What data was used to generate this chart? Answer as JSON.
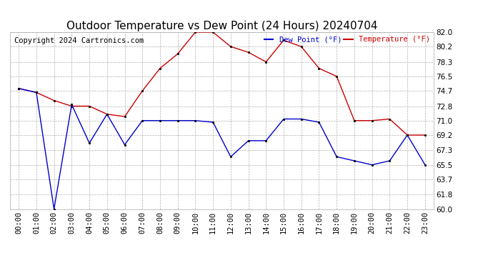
{
  "title": "Outdoor Temperature vs Dew Point (24 Hours) 20240704",
  "copyright": "Copyright 2024 Cartronics.com",
  "legend_dew": "Dew Point (°F)",
  "legend_temp": "Temperature (°F)",
  "x_labels": [
    "00:00",
    "01:00",
    "02:00",
    "03:00",
    "04:00",
    "05:00",
    "06:00",
    "07:00",
    "08:00",
    "09:00",
    "10:00",
    "11:00",
    "12:00",
    "13:00",
    "14:00",
    "15:00",
    "16:00",
    "17:00",
    "18:00",
    "19:00",
    "20:00",
    "21:00",
    "22:00",
    "23:00"
  ],
  "temperature": [
    75.0,
    74.5,
    73.5,
    72.8,
    72.8,
    71.8,
    71.5,
    74.7,
    77.5,
    79.3,
    82.0,
    82.0,
    80.2,
    79.5,
    78.3,
    81.0,
    80.2,
    77.5,
    76.5,
    71.0,
    71.0,
    71.2,
    69.2,
    69.2
  ],
  "dew_point": [
    75.0,
    74.5,
    60.0,
    73.0,
    68.2,
    71.8,
    68.0,
    71.0,
    71.0,
    71.0,
    71.0,
    70.8,
    66.5,
    68.5,
    68.5,
    71.2,
    71.2,
    70.8,
    66.5,
    66.0,
    65.5,
    66.0,
    69.2,
    65.5
  ],
  "ylim": [
    60.0,
    82.0
  ],
  "yticks": [
    60.0,
    61.8,
    63.7,
    65.5,
    67.3,
    69.2,
    71.0,
    72.8,
    74.7,
    76.5,
    78.3,
    80.2,
    82.0
  ],
  "temp_color": "#cc0000",
  "dew_color": "#0000cc",
  "bg_color": "#ffffff",
  "grid_color": "#b0b0b0",
  "title_fontsize": 11,
  "axis_fontsize": 7.5,
  "copyright_fontsize": 7.5
}
